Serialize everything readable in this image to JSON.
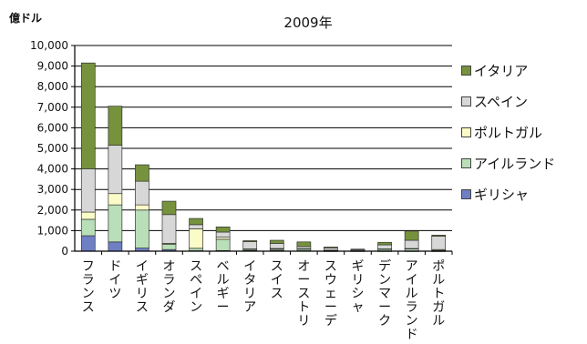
{
  "chart_data": {
    "type": "bar",
    "stacked": true,
    "title": "2009年",
    "ylabel": "億ドル",
    "xlabel": "",
    "ylim": [
      0,
      10000
    ],
    "yticks": [
      "0",
      "1,000",
      "2,000",
      "3,000",
      "4,000",
      "5,000",
      "6,000",
      "7,000",
      "8,000",
      "9,000",
      "10,000"
    ],
    "grid": true,
    "legend_position": "right",
    "categories": [
      "フランス",
      "ドイツ",
      "イギリス",
      "オランダ",
      "スペイン",
      "ベルギー",
      "イタリア",
      "スイス",
      "オーストリア",
      "スウェーデン",
      "ギリシャ",
      "デンマーク",
      "アイルランド",
      "ポルトガル"
    ],
    "category_label_display": [
      "フランス",
      "ドイツ",
      "イギリス",
      "オランダ",
      "スペイン",
      "ベルギー",
      "イタリア",
      "スイス",
      "オーストリ",
      "スウェーデ",
      "ギリシャ",
      "デンマーク",
      "アイルランド",
      "ポルトガル"
    ],
    "series": [
      {
        "name": "ギリシャ",
        "color": "#6f7fc4",
        "values": [
          750,
          450,
          150,
          80,
          20,
          30,
          30,
          40,
          20,
          10,
          0,
          10,
          10,
          10
        ]
      },
      {
        "name": "アイルランド",
        "color": "#b9dfb9",
        "values": [
          800,
          1800,
          1850,
          250,
          120,
          550,
          50,
          60,
          80,
          20,
          10,
          80,
          100,
          30
        ]
      },
      {
        "name": "ポルトガル",
        "color": "#fbfbc8",
        "values": [
          350,
          550,
          250,
          50,
          950,
          100,
          30,
          30,
          20,
          20,
          10,
          20,
          20,
          40
        ]
      },
      {
        "name": "スペイン",
        "color": "#d7d7d7",
        "values": [
          2100,
          2350,
          1150,
          1400,
          200,
          250,
          350,
          250,
          100,
          100,
          50,
          200,
          400,
          650
        ]
      },
      {
        "name": "イタリア",
        "color": "#76923c",
        "values": [
          5150,
          1900,
          800,
          650,
          300,
          250,
          50,
          150,
          230,
          50,
          30,
          120,
          450,
          50
        ]
      }
    ]
  }
}
